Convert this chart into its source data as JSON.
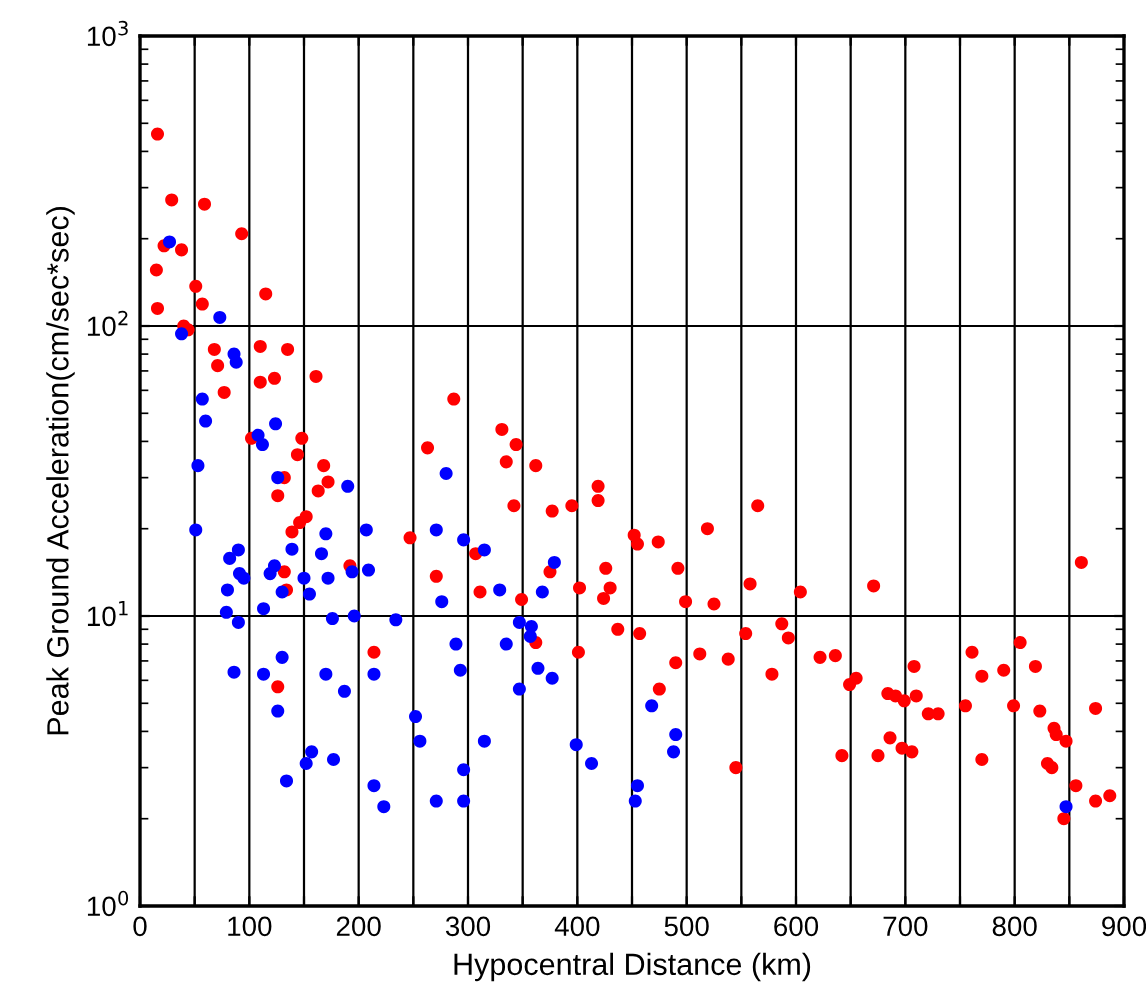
{
  "chart_data": {
    "type": "scatter",
    "xlabel": "Hypocentral Distance (km)",
    "ylabel": "Peak Ground Acceleration(cm/sec*sec)",
    "log": "y",
    "grid": true,
    "marker": "circle",
    "xlim": [
      0,
      900
    ],
    "xticks": [
      0,
      {
        "value": 50,
        "label": null
      },
      100,
      {
        "value": 150,
        "label": null
      },
      200,
      {
        "value": 250,
        "label": null
      },
      300,
      {
        "value": 350,
        "label": null
      },
      400,
      {
        "value": 450,
        "label": null
      },
      500,
      {
        "value": 550,
        "label": null
      },
      600,
      {
        "value": 650,
        "label": null
      },
      700,
      {
        "value": 750,
        "label": null
      },
      800,
      {
        "value": 850,
        "label": null
      },
      900
    ],
    "ylim": [
      1,
      1000
    ],
    "yticks": [
      {
        "value": 1,
        "label": "10$^{0}$"
      },
      {
        "value": 10,
        "label": "10$^{1}$"
      },
      {
        "value": 100,
        "label": "10$^{2}$"
      },
      {
        "value": 1000,
        "label": "10$^{3}$"
      }
    ],
    "series": [
      {
        "color": "#ff0000",
        "x": [
          16,
          29,
          59,
          93,
          22,
          38,
          15,
          51,
          57,
          16,
          115,
          40,
          44,
          68,
          110,
          135,
          71,
          161,
          110,
          123,
          77,
          287,
          102,
          148,
          144,
          263,
          168,
          172,
          163,
          126,
          132,
          139,
          146,
          152,
          247,
          271,
          192,
          132,
          134,
          214,
          126,
          331,
          344,
          335,
          362,
          342,
          377,
          395,
          419,
          419,
          307,
          452,
          455,
          474,
          519,
          565,
          492,
          426,
          430,
          424,
          375,
          311,
          349,
          402,
          499,
          525,
          558,
          604,
          671,
          861,
          362,
          401,
          437,
          457,
          512,
          490,
          538,
          554,
          587,
          593,
          578,
          475,
          545,
          622,
          636,
          649,
          655,
          708,
          761,
          770,
          790,
          805,
          819,
          684,
          691,
          699,
          710,
          721,
          730,
          755,
          799,
          823,
          836,
          838,
          847,
          874,
          686,
          642,
          675,
          697,
          706,
          770,
          830,
          834,
          856,
          874,
          887,
          845
        ],
        "values": [
          459,
          272,
          263,
          208,
          189,
          183,
          156,
          137,
          119,
          115,
          129,
          100,
          97,
          83,
          85,
          83,
          73,
          67,
          64,
          66,
          59,
          56,
          41,
          41,
          36,
          38,
          33,
          29,
          27,
          26,
          30,
          19.5,
          21,
          22,
          18.6,
          13.7,
          14.9,
          14.2,
          12.3,
          7.5,
          5.7,
          44,
          39,
          34,
          33,
          24,
          23,
          24,
          28,
          25,
          16.4,
          19,
          17.7,
          18,
          20,
          24,
          14.6,
          14.6,
          12.5,
          11.5,
          14.2,
          12.1,
          11.4,
          12.5,
          11.2,
          11,
          12.9,
          12.1,
          12.7,
          15.3,
          8.1,
          7.5,
          9,
          8.7,
          7.4,
          6.9,
          7.1,
          8.7,
          9.4,
          8.4,
          6.3,
          5.6,
          3,
          7.2,
          7.3,
          5.8,
          6.1,
          6.7,
          7.5,
          6.2,
          6.5,
          8.1,
          6.7,
          5.4,
          5.3,
          5.1,
          5.3,
          4.6,
          4.6,
          4.9,
          4.9,
          4.7,
          4.1,
          3.9,
          3.7,
          4.8,
          3.8,
          3.3,
          3.3,
          3.5,
          3.4,
          3.2,
          3.1,
          3,
          2.6,
          2.3,
          2.4,
          2
        ]
      },
      {
        "color": "#0000ff",
        "x": [
          27,
          73,
          38,
          86,
          88,
          57,
          60,
          124,
          108,
          112,
          53,
          126,
          190,
          280,
          51,
          207,
          170,
          271,
          139,
          166,
          82,
          90,
          91,
          95,
          123,
          119,
          130,
          80,
          150,
          172,
          194,
          209,
          155,
          79,
          113,
          90,
          176,
          196,
          234,
          276,
          289,
          130,
          86,
          113,
          170,
          214,
          187,
          126,
          252,
          256,
          157,
          152,
          177,
          134,
          214,
          223,
          271,
          296,
          315,
          379,
          329,
          368,
          347,
          358,
          357,
          335,
          293,
          364,
          377,
          347,
          468,
          315,
          399,
          413,
          490,
          488,
          296,
          455,
          453,
          296,
          847
        ],
        "values": [
          195,
          107,
          94,
          80,
          75,
          56,
          47,
          46,
          42,
          39,
          33,
          30,
          28,
          31,
          19.8,
          19.8,
          19.2,
          19.8,
          17,
          16.4,
          15.8,
          16.9,
          14,
          13.5,
          14.9,
          14,
          12.1,
          12.3,
          13.5,
          13.5,
          14.2,
          14.4,
          11.9,
          10.3,
          10.6,
          9.5,
          9.8,
          10,
          9.7,
          11.2,
          8,
          7.2,
          6.4,
          6.3,
          6.3,
          6.3,
          5.5,
          4.7,
          4.5,
          3.7,
          3.4,
          3.1,
          3.2,
          2.7,
          2.6,
          2.2,
          2.3,
          18.3,
          16.9,
          15.3,
          12.3,
          12.1,
          9.5,
          9.2,
          8.5,
          8,
          6.5,
          6.6,
          6.1,
          5.6,
          4.9,
          3.7,
          3.6,
          3.1,
          3.9,
          3.4,
          2.95,
          2.6,
          2.3,
          2.3,
          2.2
        ]
      }
    ]
  }
}
